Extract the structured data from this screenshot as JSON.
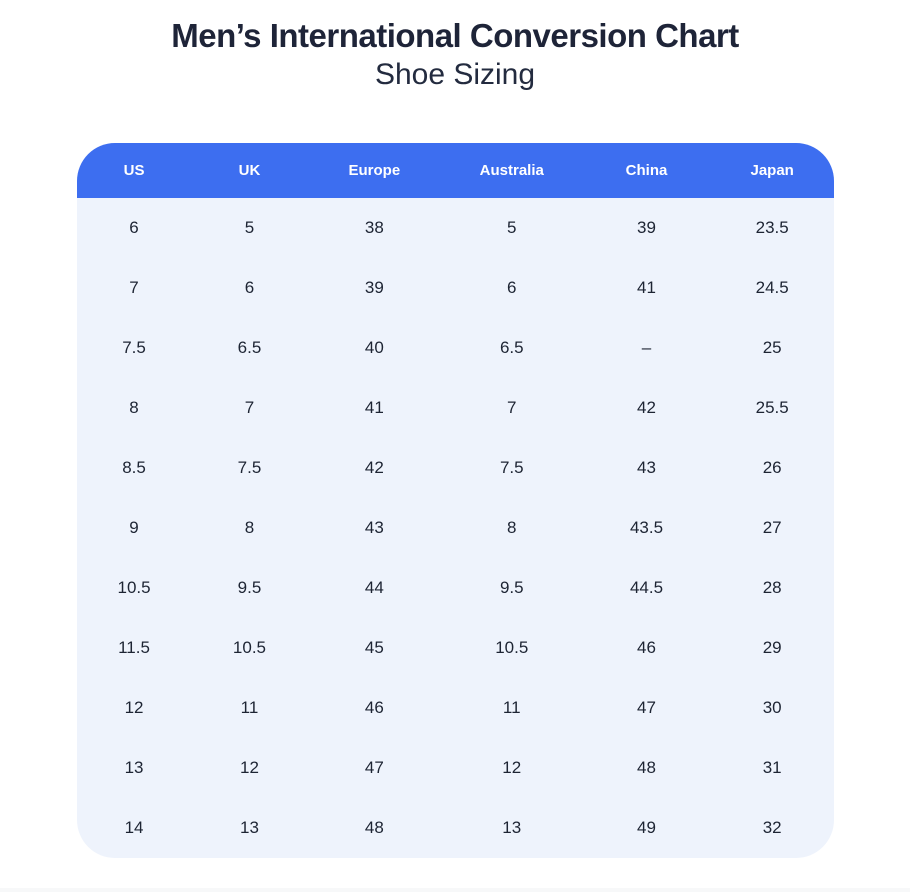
{
  "page": {
    "title": "Men’s International Conversion Chart",
    "subtitle": "Shoe Sizing"
  },
  "colors": {
    "header_bg": "#3d6ef0",
    "header_text": "#ffffff",
    "table_body_bg": "#eef3fc",
    "cell_text": "#1d2433",
    "title_text": "#1e2438"
  },
  "chart_data": {
    "type": "table",
    "title": "Men’s International Conversion Chart — Shoe Sizing",
    "columns": [
      "US",
      "UK",
      "Europe",
      "Australia",
      "China",
      "Japan"
    ],
    "rows": [
      [
        "6",
        "5",
        "38",
        "5",
        "39",
        "23.5"
      ],
      [
        "7",
        "6",
        "39",
        "6",
        "41",
        "24.5"
      ],
      [
        "7.5",
        "6.5",
        "40",
        "6.5",
        "–",
        "25"
      ],
      [
        "8",
        "7",
        "41",
        "7",
        "42",
        "25.5"
      ],
      [
        "8.5",
        "7.5",
        "42",
        "7.5",
        "43",
        "26"
      ],
      [
        "9",
        "8",
        "43",
        "8",
        "43.5",
        "27"
      ],
      [
        "10.5",
        "9.5",
        "44",
        "9.5",
        "44.5",
        "28"
      ],
      [
        "11.5",
        "10.5",
        "45",
        "10.5",
        "46",
        "29"
      ],
      [
        "12",
        "11",
        "46",
        "11",
        "47",
        "30"
      ],
      [
        "13",
        "12",
        "47",
        "12",
        "48",
        "31"
      ],
      [
        "14",
        "13",
        "48",
        "13",
        "49",
        "32"
      ]
    ]
  }
}
